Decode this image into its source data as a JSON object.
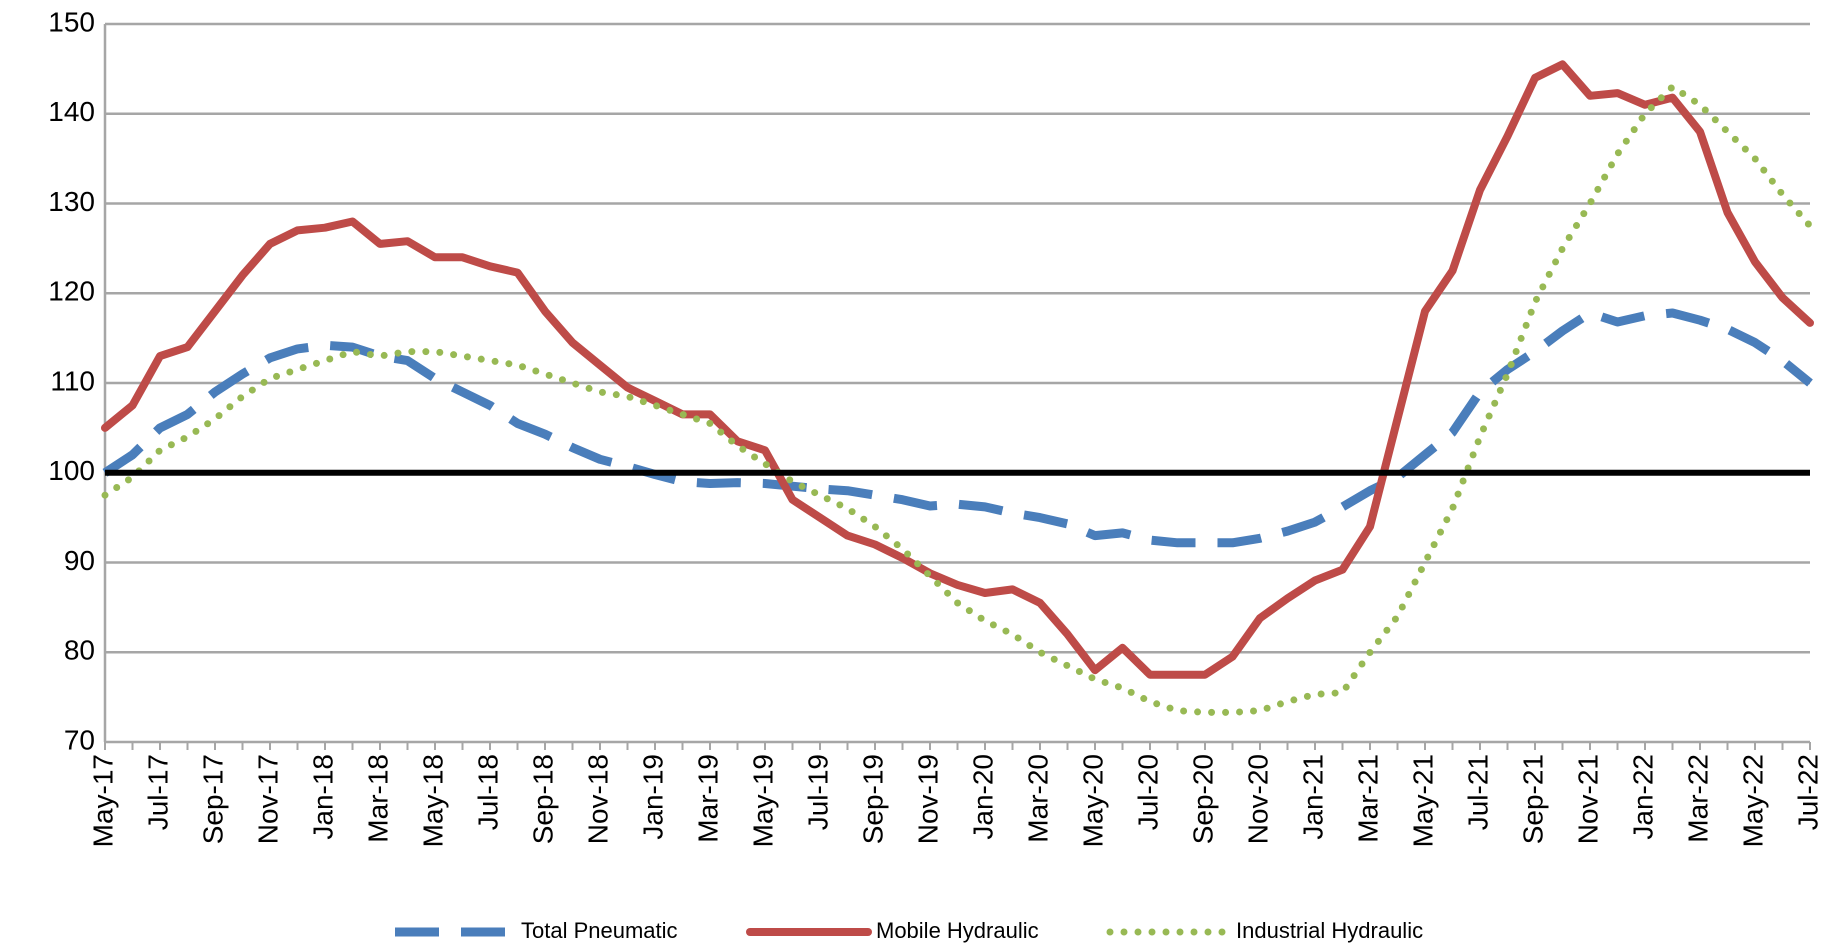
{
  "chart_data": {
    "type": "line",
    "categories": [
      "May-17",
      null,
      "Jul-17",
      null,
      "Sep-17",
      null,
      "Nov-17",
      null,
      "Jan-18",
      null,
      "Mar-18",
      null,
      "May-18",
      null,
      "Jul-18",
      null,
      "Sep-18",
      null,
      "Nov-18",
      null,
      "Jan-19",
      null,
      "Mar-19",
      null,
      "May-19",
      null,
      "Jul-19",
      null,
      "Sep-19",
      null,
      "Nov-19",
      null,
      "Jan-20",
      null,
      "Mar-20",
      null,
      "May-20",
      null,
      "Jul-20",
      null,
      "Sep-20",
      null,
      "Nov-20",
      null,
      "Jan-21",
      null,
      "Mar-21",
      null,
      "May-21",
      null,
      "Jul-21",
      null,
      "Sep-21",
      null,
      "Nov-21",
      null,
      "Jan-22",
      null,
      "Mar-22",
      null,
      "May-22",
      null,
      "Jul-22"
    ],
    "series": [
      {
        "name": "Total Pneumatic",
        "color": "#4a7ebb",
        "style": "dashed",
        "values": [
          100,
          102,
          105,
          106.5,
          109,
          111,
          112.8,
          113.8,
          114.2,
          114,
          113,
          112.5,
          110.5,
          109,
          107.5,
          105.5,
          104.3,
          102.8,
          101.5,
          100.7,
          99.8,
          99,
          98.8,
          98.9,
          98.8,
          98.5,
          98.2,
          98,
          97.5,
          97,
          96.3,
          96.5,
          96.2,
          95.5,
          95,
          94.3,
          93,
          93.3,
          92.5,
          92.2,
          92.2,
          92.2,
          92.7,
          93.5,
          94.5,
          96.2,
          98,
          99.5,
          102,
          104.5,
          109,
          111.5,
          113.5,
          115.8,
          117.8,
          116.8,
          117.5,
          117.8,
          117,
          116,
          114.5,
          112.5,
          110
        ]
      },
      {
        "name": "Mobile Hydraulic",
        "color": "#be4b48",
        "style": "solid",
        "values": [
          105,
          107.5,
          113,
          114,
          118,
          122,
          125.5,
          127,
          127.3,
          128,
          125.5,
          125.8,
          124,
          124,
          123,
          122.3,
          118,
          114.5,
          112,
          109.5,
          108,
          106.5,
          106.5,
          103.5,
          102.5,
          97,
          95,
          93,
          92,
          90.5,
          88.8,
          87.5,
          86.6,
          87,
          85.5,
          82,
          78,
          80.5,
          77.5,
          77.5,
          77.5,
          79.5,
          83.8,
          86,
          88,
          89.2,
          94,
          106,
          118,
          122.5,
          131.5,
          137.5,
          144,
          145.5,
          142,
          142.3,
          141,
          141.8,
          138,
          129,
          123.5,
          119.5,
          116.7
        ]
      },
      {
        "name": "Industrial Hydraulic",
        "color": "#98b954",
        "style": "dotted",
        "values": [
          97.5,
          99.5,
          102.5,
          104,
          106,
          108.5,
          110.5,
          111.5,
          112.5,
          113.5,
          113,
          113.5,
          113.5,
          113,
          112.5,
          112,
          111,
          110,
          109,
          108.5,
          107.5,
          106.5,
          105.5,
          103,
          101,
          99,
          97.5,
          96,
          94,
          91.5,
          88.5,
          85.5,
          83.5,
          82,
          80,
          78.5,
          77,
          76,
          74.5,
          73.5,
          73.3,
          73.3,
          73.5,
          74.5,
          75.3,
          75.5,
          80,
          84,
          90,
          96,
          104,
          111,
          119,
          125,
          130,
          135.5,
          140,
          143,
          141,
          138,
          135,
          131,
          127.5
        ]
      }
    ],
    "reference_line": 100,
    "ylim": [
      70,
      150
    ],
    "yticks": [
      70,
      80,
      90,
      100,
      110,
      120,
      130,
      140,
      150
    ],
    "grid": true,
    "legend": "bottom"
  }
}
